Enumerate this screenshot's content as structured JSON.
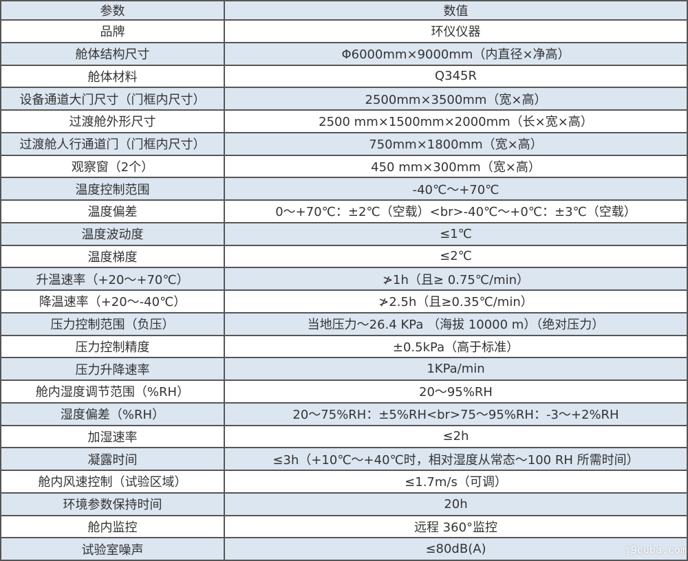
{
  "header": {
    "param": "参数",
    "value": "数值"
  },
  "rows": [
    [
      "品牌",
      "环仪仪器"
    ],
    [
      "舱体结构尺寸",
      "Φ6000mm×9000mm（内直径×净高）"
    ],
    [
      "舱体材料",
      "Q345R"
    ],
    [
      "设备通道大门尺寸（门框内尺寸）",
      "2500mm×3500mm（宽×高）"
    ],
    [
      "过渡舱外形尺寸",
      "2500 mm×1500mm×2000mm（长×宽×高）"
    ],
    [
      "过渡舱人行通道门（门框内尺寸）",
      "750mm×1800mm（宽×高）"
    ],
    [
      "观察窗（2个）",
      "450 mm×300mm（宽×高）"
    ],
    [
      "温度控制范围",
      "-40℃～+70℃"
    ],
    [
      "温度偏差",
      "0～+70℃：±2℃（空载）<br>-40℃～+0℃：±3℃（空载）"
    ],
    [
      "温度波动度",
      "≤1℃"
    ],
    [
      "温度梯度",
      "≤2℃"
    ],
    [
      "升温速率（+20～+70℃）",
      "≯1h（且≥ 0.75℃/min）"
    ],
    [
      "降温速率（+20～-40℃）",
      "≯2.5h（且≥0.35℃/min）"
    ],
    [
      "压力控制范围（负压）",
      "当地压力～26.4 KPa （海拔 10000 m）（绝对压力）"
    ],
    [
      "压力控制精度",
      "±0.5kPa（高于标准）"
    ],
    [
      "压力升降速率",
      "1KPa/min"
    ],
    [
      "舱内湿度调节范围（%RH）",
      "20～95%RH"
    ],
    [
      "湿度偏差（%RH）",
      "20～75%RH：±5%RH<br>75～95%RH：-3～+2%RH"
    ],
    [
      "加湿速率",
      "≤2h"
    ],
    [
      "凝露时间",
      "≤3h（+10℃～+40℃时，相对湿度从常态～100 RH 所需时间）"
    ],
    [
      "舱内风速控制（试验区域）",
      "≤1.7m/s（可调）"
    ],
    [
      "环境参数保持时间",
      "20h"
    ],
    [
      "舱内监控",
      "远程 360°监控"
    ],
    [
      "试验室噪声",
      "≤80dB(A)"
    ]
  ],
  "watermark": "j9cuba.com",
  "colors": {
    "row_alt": "#dce6f1",
    "border": "#555555"
  }
}
